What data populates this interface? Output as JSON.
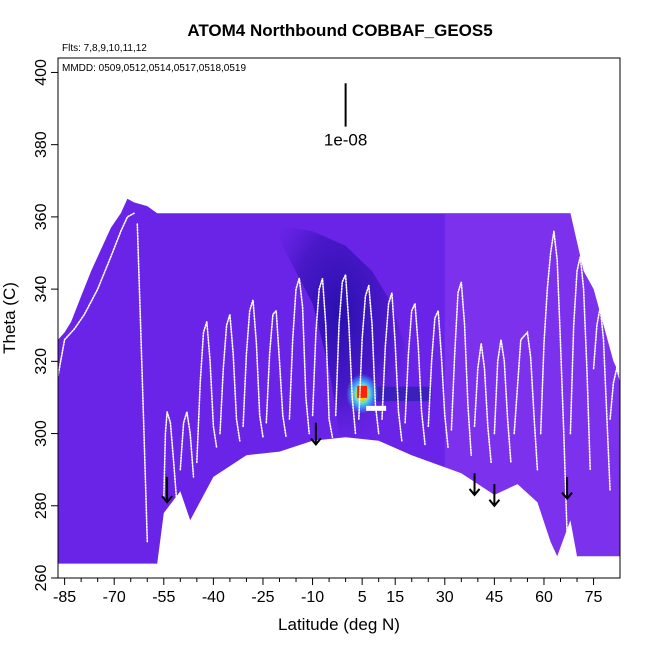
{
  "chart_data": {
    "type": "heatmap",
    "title": "ATOM4 Northbound COBBAF_GEOS5",
    "subtitle_flights": "Flts: 7,8,9,10,11,12",
    "subtitle_dates": "MMDD: 0509,0512,0514,0517,0518,0519",
    "xlabel": "Latitude (deg N)",
    "ylabel": "Theta (C)",
    "xlim": [
      -87,
      83
    ],
    "ylim": [
      260,
      404
    ],
    "x_ticks": [
      -85,
      -70,
      -55,
      -40,
      -25,
      -10,
      5,
      15,
      30,
      45,
      60,
      75
    ],
    "y_ticks": [
      260,
      280,
      300,
      320,
      340,
      360,
      380,
      400
    ],
    "scale_label": "1e-08",
    "scale_bar": {
      "x": 0,
      "y_top": 397,
      "y_bottom": 385
    },
    "colors": {
      "background_field": "#6a24e8",
      "light_field": "#8a3cf0",
      "dark_field": "#4a18c8",
      "ground": "#ffffff",
      "track": "#ffffff",
      "hot_core": "#ff2200"
    },
    "upper_boundary": [
      [
        -87,
        326
      ],
      [
        -85,
        328
      ],
      [
        -83,
        331
      ],
      [
        -80,
        338
      ],
      [
        -77,
        345
      ],
      [
        -74,
        351
      ],
      [
        -71,
        357
      ],
      [
        -68,
        361
      ],
      [
        -66,
        365
      ],
      [
        -64,
        364
      ],
      [
        -60,
        363
      ],
      [
        -57,
        361
      ],
      [
        -50,
        361
      ],
      [
        -40,
        361
      ],
      [
        -30,
        361
      ],
      [
        -20,
        361
      ],
      [
        -5,
        361
      ],
      [
        10,
        361
      ],
      [
        20,
        361
      ],
      [
        25,
        361
      ],
      [
        30,
        361
      ],
      [
        40,
        361
      ],
      [
        50,
        361
      ],
      [
        60,
        361
      ],
      [
        68,
        361
      ],
      [
        72,
        345
      ],
      [
        75,
        340
      ],
      [
        78,
        330
      ],
      [
        81,
        320
      ],
      [
        83,
        316
      ]
    ],
    "dark_region": [
      [
        -22,
        358
      ],
      [
        -10,
        356
      ],
      [
        0,
        352
      ],
      [
        8,
        345
      ],
      [
        14,
        336
      ],
      [
        18,
        324
      ],
      [
        18,
        306
      ],
      [
        10,
        298
      ],
      [
        2,
        296
      ],
      [
        -2,
        300
      ],
      [
        -5,
        318
      ],
      [
        -10,
        336
      ],
      [
        -18,
        350
      ]
    ],
    "hot_spot": {
      "x": 5,
      "y": 311
    },
    "ground_boundary": [
      [
        -87,
        264
      ],
      [
        -57,
        264
      ],
      [
        -55,
        278
      ],
      [
        -50,
        284
      ],
      [
        -47,
        276
      ],
      [
        -40,
        288
      ],
      [
        -30,
        294
      ],
      [
        -20,
        295
      ],
      [
        -10,
        298
      ],
      [
        0,
        299
      ],
      [
        10,
        298
      ],
      [
        20,
        294
      ],
      [
        35,
        289
      ],
      [
        45,
        283
      ],
      [
        52,
        286
      ],
      [
        58,
        281
      ],
      [
        62,
        270
      ],
      [
        64,
        266
      ],
      [
        68,
        276
      ],
      [
        70,
        266
      ],
      [
        83,
        266
      ]
    ],
    "track_segments": [
      [
        [
          -87,
          316
        ],
        [
          -85,
          326
        ],
        [
          -82,
          329
        ],
        [
          -79,
          333
        ],
        [
          -75,
          340
        ],
        [
          -71,
          349
        ],
        [
          -68,
          356
        ],
        [
          -66,
          360
        ],
        [
          -64,
          361
        ]
      ],
      [
        [
          -63,
          358
        ],
        [
          -62,
          330
        ],
        [
          -61,
          300
        ],
        [
          -60,
          270
        ]
      ],
      [
        [
          -55,
          282
        ],
        [
          -54.5,
          300
        ],
        [
          -54,
          306
        ],
        [
          -53,
          303
        ],
        [
          -52,
          292
        ],
        [
          -51,
          280
        ]
      ],
      [
        [
          -50,
          290
        ],
        [
          -49,
          303
        ],
        [
          -48,
          306
        ],
        [
          -47,
          300
        ],
        [
          -46,
          288
        ]
      ],
      [
        [
          -45,
          292
        ],
        [
          -44,
          314
        ],
        [
          -43,
          328
        ],
        [
          -42,
          331
        ],
        [
          -41,
          320
        ],
        [
          -40,
          302
        ],
        [
          -39,
          296
        ]
      ],
      [
        [
          -38,
          300
        ],
        [
          -37,
          318
        ],
        [
          -36,
          330
        ],
        [
          -35,
          333
        ],
        [
          -34,
          322
        ],
        [
          -33,
          304
        ],
        [
          -32,
          298
        ]
      ],
      [
        [
          -31,
          302
        ],
        [
          -30,
          322
        ],
        [
          -29,
          334
        ],
        [
          -28,
          337
        ],
        [
          -27,
          325
        ],
        [
          -26,
          305
        ],
        [
          -25,
          299
        ]
      ],
      [
        [
          -24,
          303
        ],
        [
          -23,
          322
        ],
        [
          -22,
          333
        ],
        [
          -21,
          334
        ],
        [
          -20,
          320
        ],
        [
          -19,
          305
        ],
        [
          -18,
          299
        ]
      ],
      [
        [
          -17,
          304
        ],
        [
          -16,
          326
        ],
        [
          -15,
          340
        ],
        [
          -14,
          343
        ],
        [
          -13,
          335
        ],
        [
          -12,
          310
        ],
        [
          -11,
          300
        ]
      ],
      [
        [
          -10,
          305
        ],
        [
          -9,
          328
        ],
        [
          -8,
          340
        ],
        [
          -7,
          343
        ],
        [
          -6,
          330
        ],
        [
          -5,
          304
        ],
        [
          -4,
          299
        ]
      ],
      [
        [
          -3,
          305
        ],
        [
          -2,
          330
        ],
        [
          -1,
          342
        ],
        [
          0,
          344
        ],
        [
          1,
          330
        ],
        [
          2,
          310
        ],
        [
          3,
          300
        ]
      ],
      [
        [
          4,
          304
        ],
        [
          5,
          326
        ],
        [
          6,
          338
        ],
        [
          7,
          341
        ],
        [
          8,
          330
        ],
        [
          9,
          308
        ],
        [
          10,
          300
        ]
      ],
      [
        [
          11,
          304
        ],
        [
          12,
          324
        ],
        [
          13,
          336
        ],
        [
          14,
          339
        ],
        [
          15,
          325
        ],
        [
          16,
          306
        ],
        [
          17,
          298
        ]
      ],
      [
        [
          18,
          303
        ],
        [
          19,
          322
        ],
        [
          20,
          334
        ],
        [
          21,
          336
        ],
        [
          22,
          324
        ],
        [
          23,
          306
        ],
        [
          24,
          297
        ]
      ],
      [
        [
          25,
          302
        ],
        [
          26,
          320
        ],
        [
          27,
          332
        ],
        [
          28,
          334
        ],
        [
          29,
          321
        ],
        [
          30,
          305
        ],
        [
          31,
          296
        ]
      ],
      [
        [
          32,
          301
        ],
        [
          33,
          322
        ],
        [
          34,
          339
        ],
        [
          35,
          342
        ],
        [
          36,
          330
        ],
        [
          37,
          308
        ],
        [
          38,
          294
        ]
      ],
      [
        [
          39,
          302
        ],
        [
          40,
          318
        ],
        [
          41,
          325
        ],
        [
          42,
          318
        ],
        [
          43,
          302
        ],
        [
          44,
          292
        ]
      ],
      [
        [
          45,
          300
        ],
        [
          46,
          320
        ],
        [
          47,
          326
        ],
        [
          48,
          320
        ],
        [
          49,
          304
        ],
        [
          50,
          292
        ]
      ],
      [
        [
          51,
          300
        ],
        [
          53,
          326
        ],
        [
          55,
          328
        ],
        [
          56,
          321
        ],
        [
          57,
          305
        ],
        [
          58,
          290
        ]
      ],
      [
        [
          59,
          300
        ],
        [
          60,
          325
        ],
        [
          61,
          340
        ],
        [
          62,
          350
        ],
        [
          63,
          356
        ],
        [
          64,
          348
        ],
        [
          65,
          325
        ],
        [
          66,
          300
        ],
        [
          67,
          272
        ]
      ],
      [
        [
          68,
          300
        ],
        [
          69,
          330
        ],
        [
          70,
          345
        ],
        [
          71,
          349
        ],
        [
          72,
          340
        ],
        [
          73,
          318
        ],
        [
          74,
          290
        ]
      ],
      [
        [
          75,
          318
        ],
        [
          76,
          330
        ],
        [
          77,
          335
        ],
        [
          78,
          326
        ],
        [
          79,
          305
        ],
        [
          80,
          284
        ]
      ],
      [
        [
          80,
          304
        ],
        [
          81,
          314
        ],
        [
          82,
          318
        ],
        [
          83,
          315
        ]
      ]
    ],
    "arrows": [
      {
        "x": -54,
        "y_top": 288,
        "y_bottom": 281
      },
      {
        "x": -9,
        "y_top": 303,
        "y_bottom": 297
      },
      {
        "x": 39,
        "y_top": 289,
        "y_bottom": 283
      },
      {
        "x": 45,
        "y_top": 286,
        "y_bottom": 280
      },
      {
        "x": 67,
        "y_top": 288,
        "y_bottom": 282
      }
    ]
  }
}
